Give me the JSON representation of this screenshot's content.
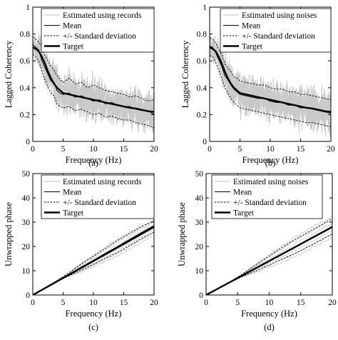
{
  "colors": {
    "samples": "#c9c9c9",
    "mean": "#000000",
    "std": "#000000",
    "target": "#000000",
    "background": "#ffffff"
  },
  "chart_data": [
    {
      "type": "line",
      "panel_label": "(a)",
      "xlabel": "Frequency (Hz)",
      "ylabel": "Lagged Coherency",
      "xlim": [
        0,
        20
      ],
      "ylim": [
        0,
        1
      ],
      "xticks": [
        "0",
        "5",
        "10",
        "15",
        "20"
      ],
      "yticks": [
        "0",
        "0.2",
        "0.4",
        "0.6",
        "0.8",
        "1"
      ],
      "legend": [
        {
          "label": "Estimated using records",
          "style": "samples"
        },
        {
          "label": "Mean",
          "style": "mean"
        },
        {
          "label": "+/- Standard deviation",
          "style": "std"
        },
        {
          "label": "Target",
          "style": "target"
        }
      ],
      "legend_position": "top-right",
      "x": [
        0,
        0.5,
        1,
        1.5,
        2,
        2.5,
        3,
        3.5,
        4,
        4.5,
        5,
        6,
        7,
        8,
        9,
        10,
        11,
        12,
        13,
        14,
        15,
        16,
        17,
        18,
        19,
        20
      ],
      "series": [
        {
          "name": "Target",
          "values": [
            0.7,
            0.69,
            0.67,
            0.63,
            0.58,
            0.52,
            0.47,
            0.43,
            0.4,
            0.38,
            0.36,
            0.35,
            0.34,
            0.33,
            0.32,
            0.31,
            0.3,
            0.29,
            0.28,
            0.27,
            0.26,
            0.25,
            0.245,
            0.235,
            0.225,
            0.22
          ]
        },
        {
          "name": "Mean",
          "values": [
            0.72,
            0.7,
            0.68,
            0.6,
            0.55,
            0.5,
            0.45,
            0.44,
            0.38,
            0.36,
            0.35,
            0.36,
            0.33,
            0.34,
            0.32,
            0.3,
            0.31,
            0.28,
            0.29,
            0.27,
            0.26,
            0.26,
            0.24,
            0.23,
            0.23,
            0.2
          ]
        },
        {
          "name": "+/- Standard deviation",
          "values": [
            0.78,
            0.76,
            0.74,
            0.7,
            0.64,
            0.6,
            0.56,
            0.53,
            0.49,
            0.46,
            0.44,
            0.47,
            0.43,
            0.44,
            0.4,
            0.42,
            0.4,
            0.38,
            0.37,
            0.36,
            0.35,
            0.33,
            0.34,
            0.32,
            0.3,
            0.31
          ]
        },
        {
          "name": "+/- Standard deviation",
          "values": [
            0.65,
            0.63,
            0.6,
            0.52,
            0.46,
            0.4,
            0.36,
            0.34,
            0.28,
            0.26,
            0.25,
            0.26,
            0.23,
            0.24,
            0.22,
            0.2,
            0.21,
            0.18,
            0.19,
            0.17,
            0.16,
            0.16,
            0.14,
            0.13,
            0.12,
            0.1
          ]
        }
      ]
    },
    {
      "type": "line",
      "panel_label": "(b)",
      "xlabel": "Frequency (Hz)",
      "ylabel": "Lagged Coherency",
      "xlim": [
        0,
        20
      ],
      "ylim": [
        0,
        1
      ],
      "xticks": [
        "0",
        "5",
        "10",
        "15",
        "20"
      ],
      "yticks": [
        "0",
        "0.2",
        "0.4",
        "0.6",
        "0.8",
        "1"
      ],
      "legend": [
        {
          "label": "Estimated using noises",
          "style": "samples"
        },
        {
          "label": "Mean",
          "style": "mean"
        },
        {
          "label": "+/- Standard deviation",
          "style": "std"
        },
        {
          "label": "Target",
          "style": "target"
        }
      ],
      "legend_position": "top-right",
      "x": [
        0,
        0.5,
        1,
        1.5,
        2,
        2.5,
        3,
        3.5,
        4,
        4.5,
        5,
        6,
        7,
        8,
        9,
        10,
        11,
        12,
        13,
        14,
        15,
        16,
        17,
        18,
        19,
        20
      ],
      "series": [
        {
          "name": "Target",
          "values": [
            0.7,
            0.69,
            0.67,
            0.63,
            0.58,
            0.52,
            0.47,
            0.43,
            0.4,
            0.38,
            0.36,
            0.35,
            0.34,
            0.33,
            0.32,
            0.31,
            0.3,
            0.29,
            0.28,
            0.27,
            0.26,
            0.25,
            0.245,
            0.235,
            0.225,
            0.22
          ]
        },
        {
          "name": "Mean",
          "values": [
            0.71,
            0.7,
            0.66,
            0.61,
            0.56,
            0.49,
            0.46,
            0.42,
            0.39,
            0.37,
            0.35,
            0.34,
            0.33,
            0.32,
            0.32,
            0.3,
            0.29,
            0.29,
            0.27,
            0.27,
            0.25,
            0.25,
            0.24,
            0.23,
            0.22,
            0.21
          ]
        },
        {
          "name": "+/- Standard deviation",
          "values": [
            0.77,
            0.76,
            0.73,
            0.69,
            0.64,
            0.58,
            0.55,
            0.52,
            0.48,
            0.47,
            0.45,
            0.44,
            0.43,
            0.42,
            0.42,
            0.4,
            0.39,
            0.39,
            0.37,
            0.37,
            0.35,
            0.35,
            0.34,
            0.33,
            0.32,
            0.31
          ]
        },
        {
          "name": "+/- Standard deviation",
          "values": [
            0.64,
            0.63,
            0.59,
            0.53,
            0.47,
            0.4,
            0.36,
            0.32,
            0.29,
            0.27,
            0.25,
            0.24,
            0.23,
            0.22,
            0.21,
            0.2,
            0.19,
            0.18,
            0.17,
            0.16,
            0.15,
            0.14,
            0.14,
            0.13,
            0.12,
            0.11
          ]
        }
      ]
    },
    {
      "type": "line",
      "panel_label": "(c)",
      "xlabel": "Frequency (Hz)",
      "ylabel": "Unwrapped phase",
      "xlim": [
        0,
        20
      ],
      "ylim": [
        0,
        50
      ],
      "xticks": [
        "0",
        "5",
        "10",
        "15",
        "20"
      ],
      "yticks": [
        "0",
        "10",
        "20",
        "30",
        "40",
        "50"
      ],
      "legend": [
        {
          "label": "Estimated using records",
          "style": "samples"
        },
        {
          "label": "Mean",
          "style": "mean"
        },
        {
          "label": "+/- Standard deviation",
          "style": "std"
        },
        {
          "label": "Target",
          "style": "target"
        }
      ],
      "legend_position": "top-left",
      "x": [
        0,
        2,
        4,
        6,
        8,
        10,
        12,
        14,
        16,
        18,
        20
      ],
      "series": [
        {
          "name": "Target",
          "values": [
            0,
            2.8,
            5.6,
            8.4,
            11.2,
            14.0,
            16.8,
            19.6,
            22.4,
            25.2,
            28.0
          ]
        },
        {
          "name": "Mean",
          "values": [
            0,
            2.9,
            5.7,
            8.6,
            11.5,
            14.3,
            17.2,
            20.0,
            22.9,
            25.8,
            28.6
          ]
        },
        {
          "name": "+/- Standard deviation",
          "values": [
            0,
            3.0,
            6.0,
            9.2,
            12.8,
            16.0,
            19.2,
            22.5,
            25.4,
            28.2,
            30.5
          ]
        },
        {
          "name": "+/- Standard deviation",
          "values": [
            0,
            2.8,
            5.4,
            8.0,
            10.2,
            12.6,
            15.2,
            17.5,
            20.4,
            23.3,
            26.0
          ]
        }
      ]
    },
    {
      "type": "line",
      "panel_label": "(d)",
      "xlabel": "Frequency (Hz)",
      "ylabel": "Unwrapped phase",
      "xlim": [
        0,
        20
      ],
      "ylim": [
        0,
        50
      ],
      "xticks": [
        "0",
        "5",
        "10",
        "15",
        "20"
      ],
      "yticks": [
        "0",
        "10",
        "20",
        "30",
        "40",
        "50"
      ],
      "legend": [
        {
          "label": "Estimated using noises",
          "style": "samples"
        },
        {
          "label": "Mean",
          "style": "mean"
        },
        {
          "label": "+/- Standard deviation",
          "style": "std"
        },
        {
          "label": "Target",
          "style": "target"
        }
      ],
      "legend_position": "top-left",
      "x": [
        0,
        2,
        4,
        6,
        8,
        10,
        12,
        14,
        16,
        18,
        20
      ],
      "series": [
        {
          "name": "Target",
          "values": [
            0,
            2.8,
            5.6,
            8.4,
            11.2,
            14.0,
            16.8,
            19.6,
            22.4,
            25.2,
            28.0
          ]
        },
        {
          "name": "Mean",
          "values": [
            0,
            2.8,
            5.6,
            8.5,
            11.3,
            14.1,
            16.9,
            19.7,
            22.6,
            25.4,
            28.3
          ]
        },
        {
          "name": "+/- Standard deviation",
          "values": [
            0,
            2.9,
            5.8,
            9.0,
            12.6,
            16.0,
            19.5,
            22.7,
            25.6,
            28.5,
            31.5
          ]
        },
        {
          "name": "+/- Standard deviation",
          "values": [
            0,
            2.7,
            5.4,
            7.9,
            10.0,
            12.4,
            14.7,
            17.0,
            19.6,
            22.4,
            25.1
          ]
        }
      ]
    }
  ]
}
